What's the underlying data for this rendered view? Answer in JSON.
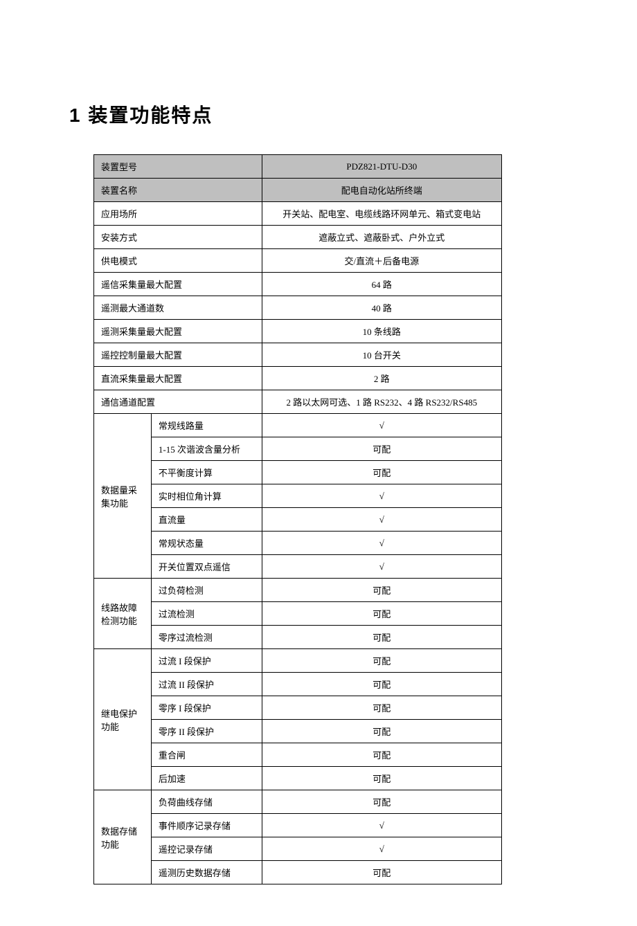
{
  "heading": "1  装置功能特点",
  "table": {
    "rows": [
      {
        "type": "header",
        "label": "装置型号",
        "value": "PDZ821-DTU-D30"
      },
      {
        "type": "header",
        "label": "装置名称",
        "value": "配电自动化站所终端"
      },
      {
        "type": "simple",
        "label": "应用场所",
        "value": "开关站、配电室、电缆线路环网单元、箱式变电站"
      },
      {
        "type": "simple",
        "label": "安装方式",
        "value": "遮蔽立式、遮蔽卧式、户外立式"
      },
      {
        "type": "simple",
        "label": "供电模式",
        "value": "交/直流＋后备电源"
      },
      {
        "type": "simple",
        "label": "遥信采集量最大配置",
        "value": "64 路"
      },
      {
        "type": "simple",
        "label": "遥测最大通道数",
        "value": "40 路"
      },
      {
        "type": "simple",
        "label": "遥测采集量最大配置",
        "value": "10 条线路"
      },
      {
        "type": "simple",
        "label": "遥控控制量最大配置",
        "value": "10 台开关"
      },
      {
        "type": "simple",
        "label": "直流采集量最大配置",
        "value": "2 路"
      },
      {
        "type": "simple",
        "label": "通信通道配置",
        "value": "2 路以太网可选、1 路 RS232、4 路 RS232/RS485"
      }
    ],
    "groups": [
      {
        "label": "数据量采集功能",
        "items": [
          {
            "sublabel": "常规线路量",
            "value": "√"
          },
          {
            "sublabel": "1-15 次谐波含量分析",
            "value": "可配"
          },
          {
            "sublabel": "不平衡度计算",
            "value": "可配"
          },
          {
            "sublabel": "实时相位角计算",
            "value": "√"
          },
          {
            "sublabel": "直流量",
            "value": "√"
          },
          {
            "sublabel": "常规状态量",
            "value": "√"
          },
          {
            "sublabel": "开关位置双点遥信",
            "value": "√"
          }
        ]
      },
      {
        "label": "线路故障检测功能",
        "items": [
          {
            "sublabel": "过负荷检测",
            "value": "可配"
          },
          {
            "sublabel": "过流检测",
            "value": "可配"
          },
          {
            "sublabel": "零序过流检测",
            "value": "可配"
          }
        ]
      },
      {
        "label": "继电保护功能",
        "items": [
          {
            "sublabel": "过流 I 段保护",
            "value": "可配"
          },
          {
            "sublabel": "过流 II 段保护",
            "value": "可配"
          },
          {
            "sublabel": "零序 I 段保护",
            "value": "可配"
          },
          {
            "sublabel": "零序 II 段保护",
            "value": "可配"
          },
          {
            "sublabel": "重合闸",
            "value": "可配"
          },
          {
            "sublabel": "后加速",
            "value": "可配"
          }
        ]
      },
      {
        "label": "数据存储功能",
        "items": [
          {
            "sublabel": "负荷曲线存储",
            "value": "可配"
          },
          {
            "sublabel": "事件顺序记录存储",
            "value": "√"
          },
          {
            "sublabel": "遥控记录存储",
            "value": "√"
          },
          {
            "sublabel": "遥测历史数据存储",
            "value": "可配"
          }
        ]
      }
    ]
  }
}
